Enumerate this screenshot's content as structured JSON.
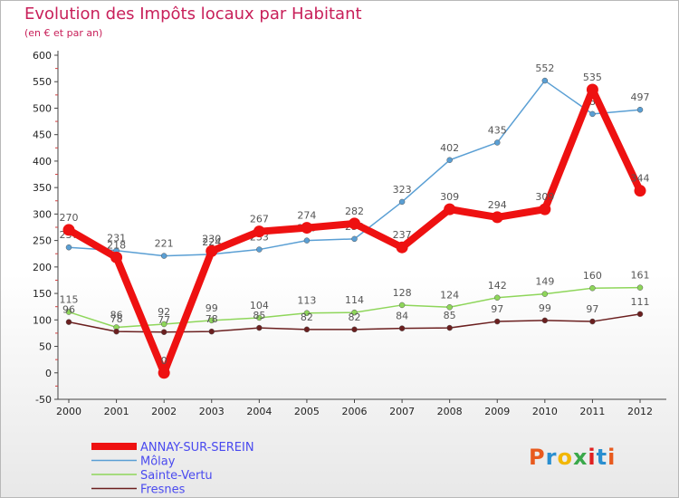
{
  "title": "Evolution des Impôts locaux par Habitant",
  "subtitle": "(en € et par an)",
  "logo": {
    "text": "Proxiti",
    "colors": [
      "#e85a1e",
      "#2a8fd0",
      "#f2b705",
      "#3aa84a",
      "#e02020",
      "#2a8fd0",
      "#e85a1e"
    ]
  },
  "chart_data": {
    "type": "line",
    "x": [
      "2000",
      "2001",
      "2002",
      "2003",
      "2004",
      "2005",
      "2006",
      "2007",
      "2008",
      "2009",
      "2010",
      "2011",
      "2012"
    ],
    "ylim": [
      -50,
      600
    ],
    "yticks": [
      -50,
      0,
      50,
      100,
      150,
      200,
      250,
      300,
      350,
      400,
      450,
      500,
      550,
      600
    ],
    "grid": false,
    "series": [
      {
        "name": "Môlay",
        "color": "#5a9fd4",
        "values": [
          237,
          231,
          221,
          224,
          233,
          250,
          253,
          323,
          402,
          435,
          552,
          489,
          497
        ],
        "labels": [
          "237",
          "231",
          "221",
          "224",
          "233",
          "250",
          "253",
          "323",
          "402",
          "435",
          "552",
          "489",
          "497"
        ]
      },
      {
        "name": "Sainte-Vertu",
        "color": "#8ed65a",
        "values": [
          115,
          86,
          92,
          99,
          104,
          113,
          114,
          128,
          124,
          142,
          149,
          160,
          161
        ],
        "labels": [
          "115",
          "86",
          "92",
          "99",
          "104",
          "113",
          "114",
          "128",
          "124",
          "142",
          "149",
          "160",
          "161"
        ]
      },
      {
        "name": "Fresnes",
        "color": "#6b1f1f",
        "values": [
          96,
          78,
          77,
          78,
          85,
          82,
          82,
          84,
          85,
          97,
          99,
          97,
          111
        ],
        "labels": [
          "96",
          "78",
          "77",
          "78",
          "85",
          "82",
          "82",
          "84",
          "85",
          "97",
          "99",
          "97",
          "111"
        ]
      },
      {
        "name": "ANNAY-SUR-SEREIN",
        "color": "#ee1111",
        "values": [
          270,
          218,
          0,
          230,
          267,
          274,
          282,
          237,
          309,
          294,
          309,
          535,
          344
        ],
        "labels": [
          "270",
          "218",
          "0",
          "230",
          "267",
          "274",
          "282",
          "237",
          "309",
          "294",
          "309",
          "535",
          "344"
        ]
      }
    ],
    "legend": [
      {
        "name": "ANNAY-SUR-SEREIN",
        "color": "#ee1111"
      },
      {
        "name": "Môlay",
        "color": "#5a9fd4"
      },
      {
        "name": "Sainte-Vertu",
        "color": "#8ed65a"
      },
      {
        "name": "Fresnes",
        "color": "#6b1f1f"
      }
    ],
    "legend_position": "bottom-left"
  }
}
